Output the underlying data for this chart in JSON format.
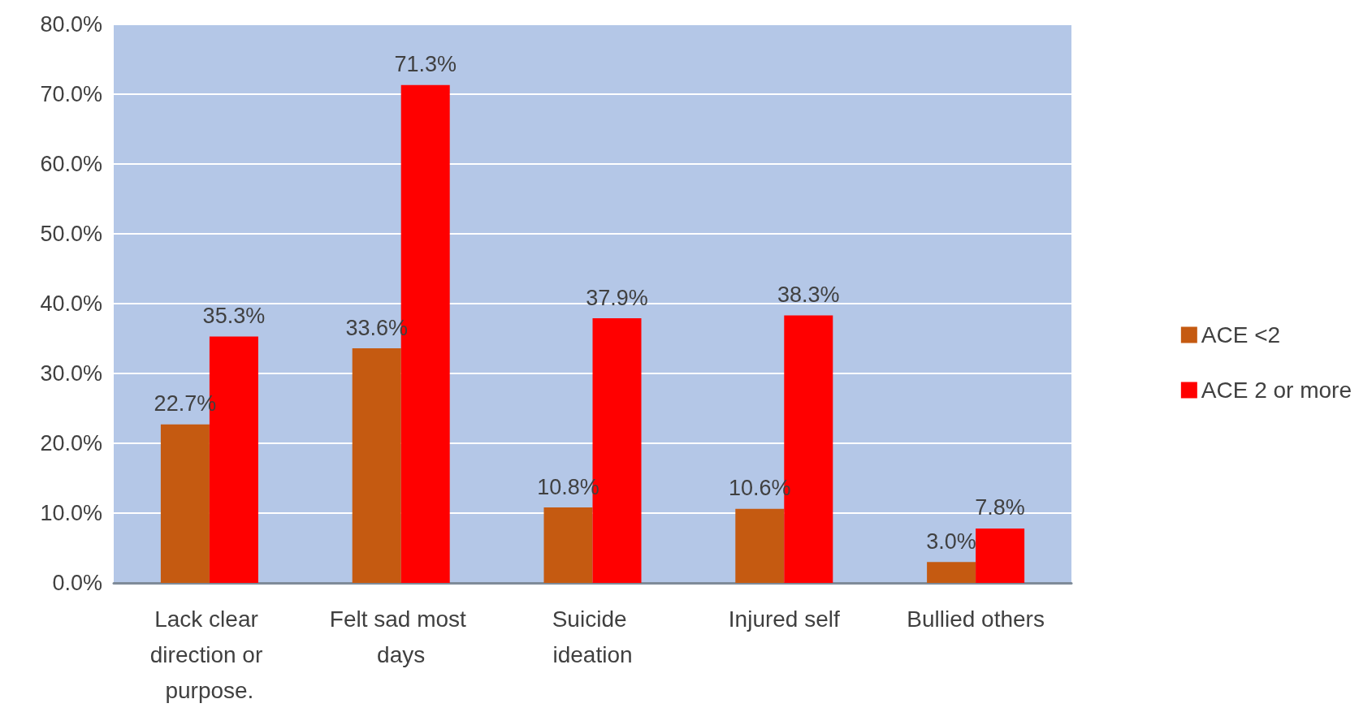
{
  "chart_data": {
    "type": "bar",
    "categories": [
      "Lack clear direction or purpose.",
      "Felt sad most days",
      "Suicide ideation",
      "Injured self",
      "Bullied others"
    ],
    "series": [
      {
        "name": "ACE <2",
        "color": "#c55a11",
        "values": [
          22.7,
          33.6,
          10.8,
          10.6,
          3.0
        ],
        "value_labels": [
          "22.7%",
          "33.6%",
          "10.8%",
          "10.6%",
          "3.0%"
        ]
      },
      {
        "name": "ACE 2 or more",
        "color": "#ff0000",
        "values": [
          35.3,
          71.3,
          37.9,
          38.3,
          7.8
        ],
        "value_labels": [
          "35.3%",
          "71.3%",
          "37.9%",
          "38.3%",
          "7.8%"
        ]
      }
    ],
    "ylim": [
      0,
      80
    ],
    "yticks": [
      {
        "value": 0,
        "label": "0.0%"
      },
      {
        "value": 10,
        "label": "10.0%"
      },
      {
        "value": 20,
        "label": "20.0%"
      },
      {
        "value": 30,
        "label": "30.0%"
      },
      {
        "value": 40,
        "label": "40.0%"
      },
      {
        "value": 50,
        "label": "50.0%"
      },
      {
        "value": 60,
        "label": "60.0%"
      },
      {
        "value": 70,
        "label": "70.0%"
      },
      {
        "value": 80,
        "label": "80.0%"
      }
    ],
    "grid": "y",
    "legend": "right"
  }
}
